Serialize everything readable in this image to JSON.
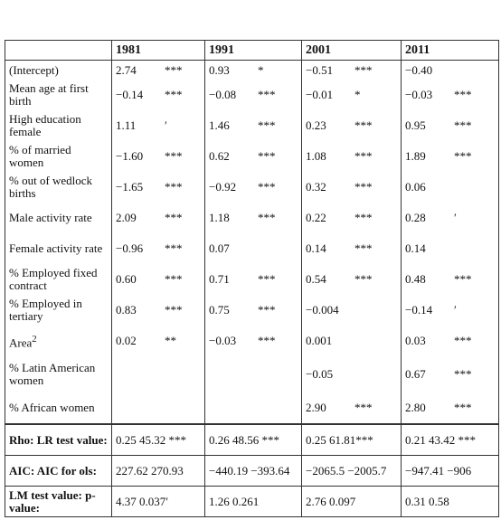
{
  "table": {
    "columns": [
      "1981",
      "1991",
      "2001",
      "2011"
    ],
    "rows": [
      {
        "label": "(Intercept)",
        "cells": [
          {
            "v": "2.74",
            "s": "***"
          },
          {
            "v": "0.93",
            "s": "*"
          },
          {
            "v": "−0.51",
            "s": "***"
          },
          {
            "v": "−0.40"
          }
        ]
      },
      {
        "label": "Mean age at first birth",
        "cells": [
          {
            "v": "−0.14",
            "s": "***"
          },
          {
            "v": "−0.08",
            "s": "***"
          },
          {
            "v": "−0.01",
            "s": "*"
          },
          {
            "v": "−0.03",
            "s": "***"
          }
        ]
      },
      {
        "label": "High education female",
        "cells": [
          {
            "v": "1.11",
            "s": "′"
          },
          {
            "v": "1.46",
            "s": "***"
          },
          {
            "v": "0.23",
            "s": "***"
          },
          {
            "v": "0.95",
            "s": "***"
          }
        ]
      },
      {
        "label": "% of married women",
        "cells": [
          {
            "v": "−1.60",
            "s": "***"
          },
          {
            "v": "0.62",
            "s": "***"
          },
          {
            "v": "1.08",
            "s": "***"
          },
          {
            "v": "1.89",
            "s": "***"
          }
        ]
      },
      {
        "label": "% out of wedlock births",
        "cells": [
          {
            "v": "−1.65",
            "s": "***"
          },
          {
            "v": "−0.92",
            "s": "***"
          },
          {
            "v": "0.32",
            "s": "***"
          },
          {
            "v": "0.06"
          }
        ]
      },
      {
        "label": "Male activity rate",
        "cells": [
          {
            "v": "2.09",
            "s": "***"
          },
          {
            "v": "1.18",
            "s": "***"
          },
          {
            "v": "0.22",
            "s": "***"
          },
          {
            "v": "0.28",
            "s": "′"
          }
        ]
      },
      {
        "label": "Female activity rate",
        "cells": [
          {
            "v": "−0.96",
            "s": "***"
          },
          {
            "v": "0.07"
          },
          {
            "v": "0.14",
            "s": "***"
          },
          {
            "v": "0.14"
          }
        ]
      },
      {
        "label": "% Employed fixed contract",
        "cells": [
          {
            "v": "0.60",
            "s": "***"
          },
          {
            "v": "0.71",
            "s": "***"
          },
          {
            "v": "0.54",
            "s": "***"
          },
          {
            "v": "0.48",
            "s": "***"
          }
        ]
      },
      {
        "label": "% Employed in tertiary",
        "cells": [
          {
            "v": "0.83",
            "s": "***"
          },
          {
            "v": "0.75",
            "s": "***"
          },
          {
            "v": "−0.004"
          },
          {
            "v": "−0.14",
            "s": "′"
          }
        ]
      },
      {
        "label": "Area",
        "sup": "2",
        "cells": [
          {
            "v": "0.02",
            "s": "**"
          },
          {
            "v": "−0.03",
            "s": "***"
          },
          {
            "v": "0.001"
          },
          {
            "v": "0.03",
            "s": "***"
          }
        ]
      },
      {
        "label": "% Latin American women",
        "cells": [
          null,
          null,
          {
            "v": "−0.05"
          },
          {
            "v": "0.67",
            "s": "***"
          }
        ]
      },
      {
        "label": "% African women",
        "cells": [
          null,
          null,
          {
            "v": "2.90",
            "s": "***"
          },
          {
            "v": "2.80",
            "s": "***"
          }
        ]
      }
    ],
    "stats": [
      {
        "label": "Rho: LR test value:",
        "cells": [
          "0.25 45.32 ***",
          "0.26 48.56 ***",
          "0.25 61.81***",
          "0.21 43.42 ***"
        ]
      },
      {
        "label": "AIC: AIC for ols:",
        "cells": [
          "227.62 270.93",
          "−440.19 −393.64",
          "−2065.5 −2005.7",
          "−947.41 −906"
        ]
      },
      {
        "label": "LM test value: p-value:",
        "cells": [
          "4.37 0.037′",
          "1.26 0.261",
          "2.76 0.097",
          "0.31 0.58"
        ]
      }
    ]
  }
}
